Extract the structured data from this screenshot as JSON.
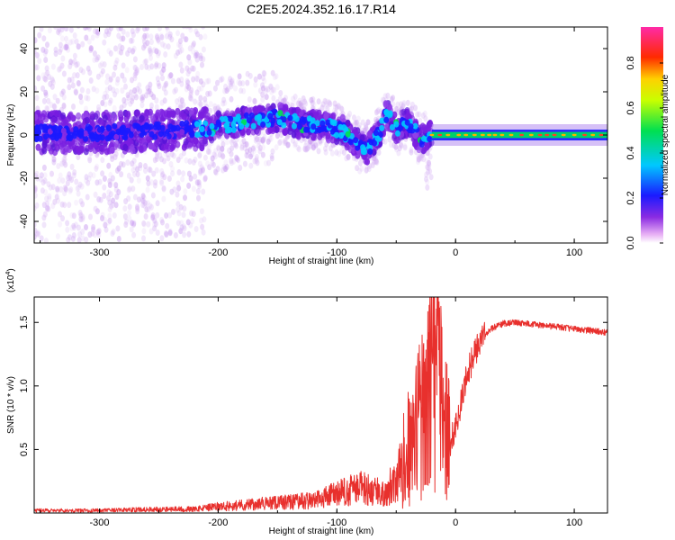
{
  "title": "C2E5.2024.352.16.17.R14",
  "chart_data": [
    {
      "type": "heatmap",
      "xlabel": "Height of straight line (km)",
      "ylabel": "Frequency (Hz)",
      "xlim": [
        -355,
        128
      ],
      "ylim": [
        -50,
        50
      ],
      "x_ticks": [
        -300,
        -200,
        -100,
        0,
        100
      ],
      "y_ticks": [
        -40,
        -20,
        0,
        20,
        40
      ],
      "x_tick_labels": [
        "-300",
        "-200",
        "-100",
        "0",
        "100"
      ],
      "y_tick_labels": [
        "-40",
        "-20",
        "0",
        "20",
        "40"
      ],
      "colorbar": {
        "label": "Normalized spectral amplitude",
        "range": [
          0,
          0.96
        ],
        "ticks": [
          0.0,
          0.2,
          0.4,
          0.6,
          0.8
        ],
        "tick_labels": [
          "0.0",
          "0.2",
          "0.4",
          "0.6",
          "0.8"
        ],
        "colormap": "rainbow (white-violet-blue-cyan-green-yellow-red-magenta)"
      },
      "ridge": {
        "heights_km": [
          -355,
          -300,
          -250,
          -210,
          -180,
          -150,
          -130,
          -110,
          -95,
          -85,
          -75,
          -65,
          -58,
          -50,
          -40,
          -30,
          -22,
          -10,
          0,
          10,
          30,
          128
        ],
        "frequency_hz": [
          1,
          1,
          2,
          3,
          6,
          8,
          5,
          4,
          2,
          -3,
          -7,
          0,
          10,
          3,
          6,
          -2,
          0,
          0,
          3,
          0,
          0,
          0
        ]
      },
      "grid": false
    },
    {
      "type": "line",
      "xlabel": "Height of straight line (km)",
      "ylabel": "SNR (10 * v/v)",
      "y_multiplier_label": "(x10",
      "y_multiplier_exp": "4",
      "y_multiplier_close": ")",
      "xlim": [
        -355,
        128
      ],
      "ylim": [
        0,
        1.7
      ],
      "x_ticks": [
        -300,
        -200,
        -100,
        0,
        100
      ],
      "y_ticks": [
        0.5,
        1.0,
        1.5
      ],
      "x_tick_labels": [
        "-300",
        "-200",
        "-100",
        "0",
        "100"
      ],
      "y_tick_labels": [
        "0.5",
        "1.0",
        "1.5"
      ],
      "color": "#e8302d",
      "series": [
        {
          "x": [
            -355,
            -300,
            -250,
            -220,
            -200,
            -170,
            -150,
            -120,
            -100,
            -80,
            -60,
            -45,
            -40,
            -35,
            -30,
            -25,
            -20,
            -15,
            -10,
            -5,
            0,
            10,
            20,
            30,
            40,
            50,
            60,
            80,
            100,
            128
          ],
          "y": [
            0.02,
            0.02,
            0.03,
            0.03,
            0.05,
            0.07,
            0.08,
            0.1,
            0.15,
            0.2,
            0.15,
            0.35,
            0.5,
            0.55,
            0.75,
            0.9,
            1.0,
            1.1,
            0.7,
            0.55,
            0.65,
            1.1,
            1.35,
            1.45,
            1.49,
            1.5,
            1.49,
            1.47,
            1.45,
            1.42
          ]
        }
      ],
      "grid": false
    }
  ]
}
